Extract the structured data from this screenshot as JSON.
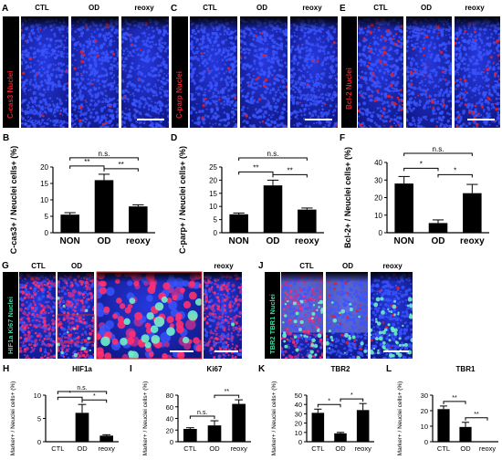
{
  "panels": {
    "A": {
      "letter": "A",
      "stain_label": "C-cas3 Nuclei",
      "conditions": [
        "CTL",
        "OD",
        "reoxy"
      ]
    },
    "C": {
      "letter": "C",
      "stain_label": "C-parp Nuclei",
      "conditions": [
        "CTL",
        "OD",
        "reoxy"
      ]
    },
    "E": {
      "letter": "E",
      "stain_label": "Bcl-2 Nuclei",
      "conditions": [
        "CTL",
        "OD",
        "reoxy"
      ]
    },
    "G": {
      "letter": "G",
      "stain_label": "HIF1a Ki67 Nuclei",
      "conditions": [
        "CTL",
        "OD",
        "reoxy"
      ]
    },
    "J": {
      "letter": "J",
      "stain_label": "TBR2 TBR1 Nuclei",
      "conditions": [
        "CTL",
        "OD",
        "reoxy"
      ]
    }
  },
  "colors": {
    "nuclei": "#1c2fd8",
    "marker_red": "#e0202a",
    "marker_green": "#3ed8a0",
    "bar": "#000000"
  },
  "chart_data": [
    {
      "id": "B",
      "type": "bar",
      "ylabel": "C-cas3+ / Neuclei cells+ (%)",
      "categories": [
        "NON",
        "OD",
        "reoxy"
      ],
      "values": [
        5.5,
        16.0,
        8.0
      ],
      "errors": [
        0.6,
        1.8,
        0.5
      ],
      "ylim": [
        0,
        20
      ],
      "yticks": [
        0,
        5,
        10,
        15,
        20
      ],
      "significance": [
        {
          "from": 0,
          "to": 2,
          "label": "n.s."
        },
        {
          "from": 0,
          "to": 1,
          "label": "**"
        },
        {
          "from": 1,
          "to": 2,
          "label": "**"
        }
      ]
    },
    {
      "id": "D",
      "type": "bar",
      "ylabel": "C-parp+ / Neuclei cells+ (%)",
      "categories": [
        "NON",
        "OD",
        "reoxy"
      ],
      "values": [
        7.0,
        18.0,
        8.8
      ],
      "errors": [
        0.5,
        2.0,
        0.6
      ],
      "ylim": [
        0,
        25
      ],
      "yticks": [
        0,
        5,
        10,
        15,
        20,
        25
      ],
      "significance": [
        {
          "from": 0,
          "to": 2,
          "label": "n.s."
        },
        {
          "from": 0,
          "to": 1,
          "label": "**"
        },
        {
          "from": 1,
          "to": 2,
          "label": "**"
        }
      ]
    },
    {
      "id": "F",
      "type": "bar",
      "ylabel": "Bcl-2+ / Neuclei cells+ (%)",
      "categories": [
        "NON",
        "OD",
        "reoxy"
      ],
      "values": [
        28.0,
        5.5,
        22.5
      ],
      "errors": [
        4.0,
        1.8,
        5.0
      ],
      "ylim": [
        0,
        40
      ],
      "yticks": [
        0,
        10,
        20,
        30,
        40
      ],
      "significance": [
        {
          "from": 0,
          "to": 2,
          "label": "n.s."
        },
        {
          "from": 0,
          "to": 1,
          "label": "*"
        },
        {
          "from": 1,
          "to": 2,
          "label": "*"
        }
      ]
    },
    {
      "id": "H",
      "type": "bar",
      "title": "HIF1a",
      "ylabel": "Marker+ / Neuclei cells+ (%)",
      "categories": [
        "CTL",
        "OD",
        "reoxy"
      ],
      "values": [
        0.0,
        6.2,
        1.3
      ],
      "errors": [
        0.0,
        1.8,
        0.2
      ],
      "ylim": [
        0,
        10
      ],
      "yticks": [
        0,
        5,
        10
      ],
      "significance": [
        {
          "from": 0,
          "to": 2,
          "label": "n.s."
        },
        {
          "from": 0,
          "to": 1,
          "label": "*"
        },
        {
          "from": 1,
          "to": 2,
          "label": "*"
        }
      ]
    },
    {
      "id": "I",
      "type": "bar",
      "title": "Ki67",
      "ylabel": "Marker+ / Neuclei cells+ (%)",
      "categories": [
        "CTL",
        "OD",
        "reoxy"
      ],
      "values": [
        22,
        28,
        65
      ],
      "errors": [
        2,
        8,
        7
      ],
      "ylim": [
        0,
        80
      ],
      "yticks": [
        0,
        20,
        40,
        60,
        80
      ],
      "significance": [
        {
          "from": 0,
          "to": 1,
          "label": "n.s."
        },
        {
          "from": 1,
          "to": 2,
          "label": "**"
        }
      ]
    },
    {
      "id": "K",
      "type": "bar",
      "title": "TBR2",
      "ylabel": "Marker+ / Neuclei cells+ (%)",
      "categories": [
        "CTL",
        "OD",
        "reoxy"
      ],
      "values": [
        31,
        9,
        34
      ],
      "errors": [
        4,
        1,
        7
      ],
      "ylim": [
        0,
        50
      ],
      "yticks": [
        0,
        10,
        20,
        30,
        40,
        50
      ],
      "significance": [
        {
          "from": 0,
          "to": 1,
          "label": "*"
        },
        {
          "from": 1,
          "to": 2,
          "label": "*"
        }
      ]
    },
    {
      "id": "L",
      "type": "bar",
      "title": "TBR1",
      "ylabel": "Marker+ / Neuclei cells+ (%)",
      "categories": [
        "CTL",
        "OD",
        "reoxy"
      ],
      "values": [
        21,
        9.5,
        0
      ],
      "errors": [
        2,
        3,
        0
      ],
      "ylim": [
        0,
        30
      ],
      "yticks": [
        0,
        10,
        20,
        30
      ],
      "significance": [
        {
          "from": 0,
          "to": 1,
          "label": "**"
        },
        {
          "from": 1,
          "to": 2,
          "label": "**"
        }
      ]
    }
  ]
}
